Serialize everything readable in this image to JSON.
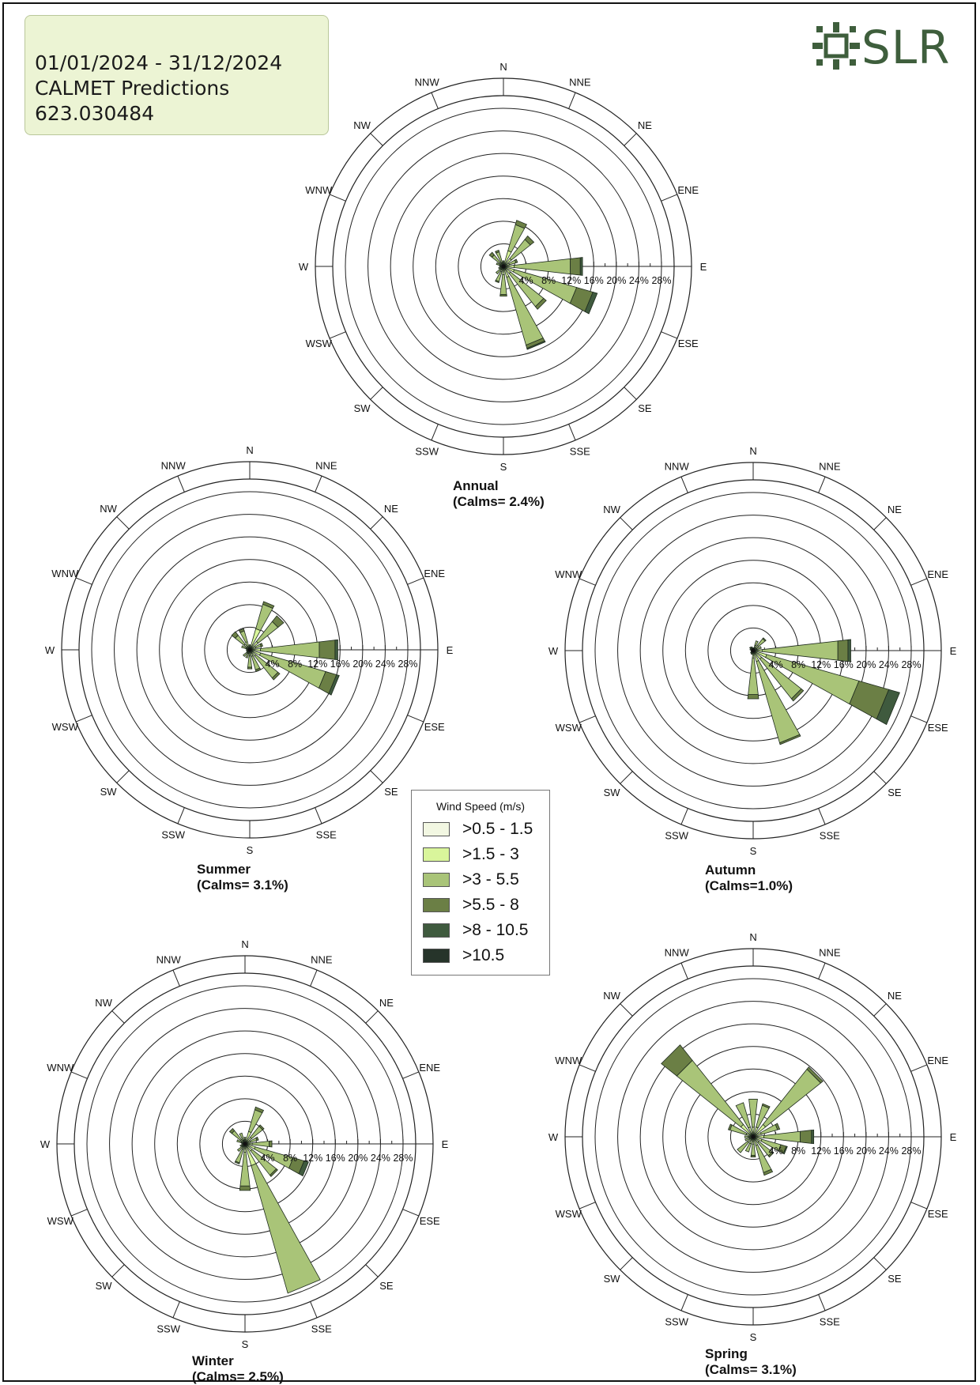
{
  "header": {
    "line1": "01/01/2024 - 31/12/2024",
    "line2": "CALMET Predictions",
    "line3": "623.030484"
  },
  "logo": {
    "text": "SLR",
    "icon": "slr-burst-icon",
    "color": "#3e5e3c"
  },
  "legend": {
    "title": "Wind Speed (m/s)",
    "items": [
      {
        "label": ">0.5 - 1.5",
        "color": "#f2f7e2"
      },
      {
        "label": ">1.5 - 3",
        "color": "#d9f59b"
      },
      {
        "label": ">3 - 5.5",
        "color": "#a9c478"
      },
      {
        "label": ">5.5 - 8",
        "color": "#6b7f45"
      },
      {
        "label": ">8 - 10.5",
        "color": "#3f5a3e"
      },
      {
        "label": ">10.5",
        "color": "#26342a"
      }
    ]
  },
  "chart_data": [
    {
      "type": "windrose",
      "title": "Annual",
      "calms": "(Calms= 2.4%)",
      "directions": [
        "N",
        "NNE",
        "NE",
        "ENE",
        "E",
        "ESE",
        "SE",
        "SSE",
        "S",
        "SSW",
        "SW",
        "WSW",
        "W",
        "WNW",
        "NW",
        "NNW"
      ],
      "rings": [
        "4%",
        "8%",
        "12%",
        "16%",
        "20%",
        "24%",
        "28%"
      ],
      "rmax": 28,
      "speed_bins": [
        ">0.5 - 1.5",
        ">1.5 - 3",
        ">3 - 5.5",
        ">5.5 - 8",
        ">8 - 10.5",
        ">10.5"
      ],
      "frequencies": [
        [
          0.2,
          0.5,
          0.3,
          0,
          0,
          0
        ],
        [
          0.4,
          2.5,
          4.8,
          0.8,
          0,
          0
        ],
        [
          0.3,
          1.5,
          4.3,
          0.8,
          0,
          0
        ],
        [
          0.3,
          0.8,
          1.2,
          0.3,
          0,
          0
        ],
        [
          0.4,
          1.5,
          10.0,
          1.8,
          0.4,
          0
        ],
        [
          0.5,
          1.5,
          11.5,
          3.0,
          0.8,
          0
        ],
        [
          0.4,
          1.2,
          7.5,
          0.6,
          0,
          0
        ],
        [
          0.5,
          1.5,
          12.5,
          0.6,
          0.2,
          0
        ],
        [
          0.3,
          1.2,
          3.5,
          0.3,
          0,
          0
        ],
        [
          0.2,
          0.8,
          1.8,
          0.2,
          0,
          0
        ],
        [
          0.2,
          0.5,
          1.0,
          0,
          0,
          0
        ],
        [
          0.1,
          0.3,
          0.5,
          0,
          0,
          0
        ],
        [
          0.1,
          0.2,
          0.4,
          0,
          0,
          0
        ],
        [
          0.2,
          0.4,
          0.7,
          0,
          0,
          0
        ],
        [
          0.2,
          0.6,
          1.8,
          0.6,
          0,
          0
        ],
        [
          0.2,
          0.5,
          2.0,
          0.3,
          0,
          0
        ]
      ]
    },
    {
      "type": "windrose",
      "title": "Summer",
      "calms": "(Calms= 3.1%)",
      "directions": [
        "N",
        "NNE",
        "NE",
        "ENE",
        "E",
        "ESE",
        "SE",
        "SSE",
        "S",
        "SSW",
        "SW",
        "WSW",
        "W",
        "WNW",
        "NW",
        "NNW"
      ],
      "rings": [
        "4%",
        "8%",
        "12%",
        "16%",
        "20%",
        "24%",
        "28%"
      ],
      "rmax": 28,
      "speed_bins": [
        ">0.5 - 1.5",
        ">1.5 - 3",
        ">3 - 5.5",
        ">5.5 - 8",
        ">8 - 10.5",
        ">10.5"
      ],
      "frequencies": [
        [
          0.2,
          0.4,
          0.3,
          0,
          0,
          0
        ],
        [
          0.4,
          3.5,
          4.5,
          0.5,
          0,
          0
        ],
        [
          0.4,
          1.5,
          4.5,
          1.3,
          0,
          0
        ],
        [
          0.3,
          0.8,
          1.0,
          0.3,
          0,
          0
        ],
        [
          0.4,
          1.5,
          10.5,
          2.8,
          0.5,
          0
        ],
        [
          0.5,
          1.5,
          12.0,
          2.0,
          0.5,
          0
        ],
        [
          0.4,
          1.0,
          5.0,
          0.4,
          0,
          0
        ],
        [
          0.4,
          0.8,
          2.5,
          0.3,
          0,
          0
        ],
        [
          0.3,
          0.8,
          2.0,
          0.3,
          0,
          0
        ],
        [
          0.2,
          0.5,
          0.8,
          0,
          0,
          0
        ],
        [
          0.2,
          0.5,
          0.8,
          0,
          0,
          0
        ],
        [
          0.1,
          0.2,
          0.3,
          0,
          0,
          0
        ],
        [
          0.1,
          0.2,
          0.3,
          0,
          0,
          0
        ],
        [
          0.2,
          0.5,
          0.8,
          0,
          0,
          0
        ],
        [
          0.3,
          1.0,
          2.0,
          0.8,
          0,
          0
        ],
        [
          0.3,
          1.2,
          2.0,
          0.4,
          0,
          0
        ]
      ]
    },
    {
      "type": "windrose",
      "title": "Autumn",
      "calms": "(Calms=1.0%)",
      "directions": [
        "N",
        "NNE",
        "NE",
        "ENE",
        "E",
        "ESE",
        "SE",
        "SSE",
        "S",
        "SSW",
        "SW",
        "WSW",
        "W",
        "WNW",
        "NW",
        "NNW"
      ],
      "rings": [
        "4%",
        "8%",
        "12%",
        "16%",
        "20%",
        "24%",
        "28%"
      ],
      "rmax": 28,
      "speed_bins": [
        ">0.5 - 1.5",
        ">1.5 - 3",
        ">3 - 5.5",
        ">5.5 - 8",
        ">8 - 10.5",
        ">10.5"
      ],
      "frequencies": [
        [
          0.1,
          0.2,
          0.2,
          0,
          0,
          0
        ],
        [
          0.2,
          0.8,
          0.8,
          0,
          0,
          0
        ],
        [
          0.2,
          1.0,
          1.5,
          0.2,
          0,
          0
        ],
        [
          0.2,
          0.5,
          0.8,
          0,
          0,
          0
        ],
        [
          0.4,
          1.2,
          13.5,
          1.8,
          0.5,
          0
        ],
        [
          0.5,
          2.0,
          17.0,
          5.5,
          2.0,
          0
        ],
        [
          0.4,
          1.5,
          9.0,
          0.5,
          0,
          0
        ],
        [
          0.5,
          1.5,
          15.0,
          0.3,
          0,
          0
        ],
        [
          0.3,
          1.0,
          6.5,
          0.8,
          0,
          0
        ],
        [
          0.1,
          0.2,
          0.4,
          0,
          0,
          0
        ],
        [
          0.1,
          0.2,
          0.3,
          0,
          0,
          0
        ],
        [
          0.1,
          0.1,
          0.2,
          0,
          0,
          0
        ],
        [
          0.1,
          0.1,
          0.2,
          0,
          0,
          0
        ],
        [
          0.1,
          0.2,
          0.3,
          0,
          0,
          0
        ],
        [
          0.1,
          0.2,
          0.5,
          0,
          0,
          0
        ],
        [
          0.1,
          0.2,
          0.4,
          0,
          0,
          0
        ]
      ]
    },
    {
      "type": "windrose",
      "title": "Winter",
      "calms": "(Calms= 2.5%)",
      "directions": [
        "N",
        "NNE",
        "NE",
        "ENE",
        "E",
        "ESE",
        "SE",
        "SSE",
        "S",
        "SSW",
        "SW",
        "WSW",
        "W",
        "WNW",
        "NW",
        "NNW"
      ],
      "rings": [
        "4%",
        "8%",
        "12%",
        "16%",
        "20%",
        "24%",
        "28%"
      ],
      "rmax": 28,
      "speed_bins": [
        ">0.5 - 1.5",
        ">1.5 - 3",
        ">3 - 5.5",
        ">5.5 - 8",
        ">8 - 10.5",
        ">10.5"
      ],
      "frequencies": [
        [
          0.2,
          0.5,
          0.5,
          0,
          0,
          0
        ],
        [
          0.3,
          2.0,
          4.0,
          0.5,
          0,
          0
        ],
        [
          0.3,
          1.2,
          2.5,
          0.3,
          0,
          0
        ],
        [
          0.3,
          0.7,
          1.2,
          0.3,
          0,
          0
        ],
        [
          0.3,
          1.0,
          3.0,
          0.5,
          0,
          0
        ],
        [
          0.4,
          1.5,
          7.0,
          2.0,
          0.8,
          0
        ],
        [
          0.4,
          1.2,
          5.5,
          0.3,
          0,
          0
        ],
        [
          0.5,
          3.5,
          23.5,
          0,
          0,
          0
        ],
        [
          0.3,
          1.2,
          6.0,
          0.8,
          0,
          0
        ],
        [
          0.2,
          0.8,
          2.5,
          0.2,
          0,
          0
        ],
        [
          0.2,
          0.5,
          1.0,
          0,
          0,
          0
        ],
        [
          0.1,
          0.3,
          0.5,
          0,
          0,
          0
        ],
        [
          0.1,
          0.2,
          0.3,
          0,
          0,
          0
        ],
        [
          0.2,
          0.5,
          0.8,
          0,
          0,
          0
        ],
        [
          0.2,
          0.8,
          2.0,
          0.5,
          0,
          0
        ],
        [
          0.2,
          0.5,
          1.3,
          0,
          0,
          0
        ]
      ]
    },
    {
      "type": "windrose",
      "title": "Spring",
      "calms": "(Calms= 3.1%)",
      "directions": [
        "N",
        "NNE",
        "NE",
        "ENE",
        "E",
        "ESE",
        "SE",
        "SSE",
        "S",
        "SSW",
        "SW",
        "WSW",
        "W",
        "WNW",
        "NW",
        "NNW"
      ],
      "rings": [
        "4%",
        "8%",
        "12%",
        "16%",
        "20%",
        "24%",
        "28%"
      ],
      "rmax": 28,
      "speed_bins": [
        ">0.5 - 1.5",
        ">1.5 - 3",
        ">3 - 5.5",
        ">5.5 - 8",
        ">8 - 10.5",
        ">10.5"
      ],
      "frequencies": [
        [
          0.2,
          1.5,
          5.0,
          0,
          0,
          0
        ],
        [
          0.3,
          1.5,
          4.0,
          0.3,
          0,
          0
        ],
        [
          0.3,
          2.5,
          12.5,
          0.5,
          0,
          0
        ],
        [
          0.3,
          1.2,
          3.0,
          0.4,
          0,
          0
        ],
        [
          0.4,
          1.5,
          6.5,
          2.0,
          0.4,
          0
        ],
        [
          0.4,
          1.2,
          3.5,
          1.0,
          0.2,
          0
        ],
        [
          0.3,
          1.0,
          3.0,
          0.3,
          0,
          0
        ],
        [
          0.4,
          1.2,
          5.0,
          0.5,
          0,
          0
        ],
        [
          0.3,
          1.0,
          2.0,
          0.3,
          0,
          0
        ],
        [
          0.3,
          1.0,
          1.5,
          0,
          0,
          0
        ],
        [
          0.3,
          1.0,
          2.3,
          0,
          0,
          0
        ],
        [
          0.2,
          0.5,
          0.8,
          0,
          0,
          0
        ],
        [
          0.2,
          0.5,
          0.8,
          0,
          0,
          0
        ],
        [
          0.3,
          1.0,
          3.0,
          0.3,
          0,
          0
        ],
        [
          0.3,
          2.5,
          14.5,
          3.5,
          0,
          0
        ],
        [
          0.3,
          1.5,
          4.5,
          0,
          0,
          0
        ]
      ]
    }
  ]
}
